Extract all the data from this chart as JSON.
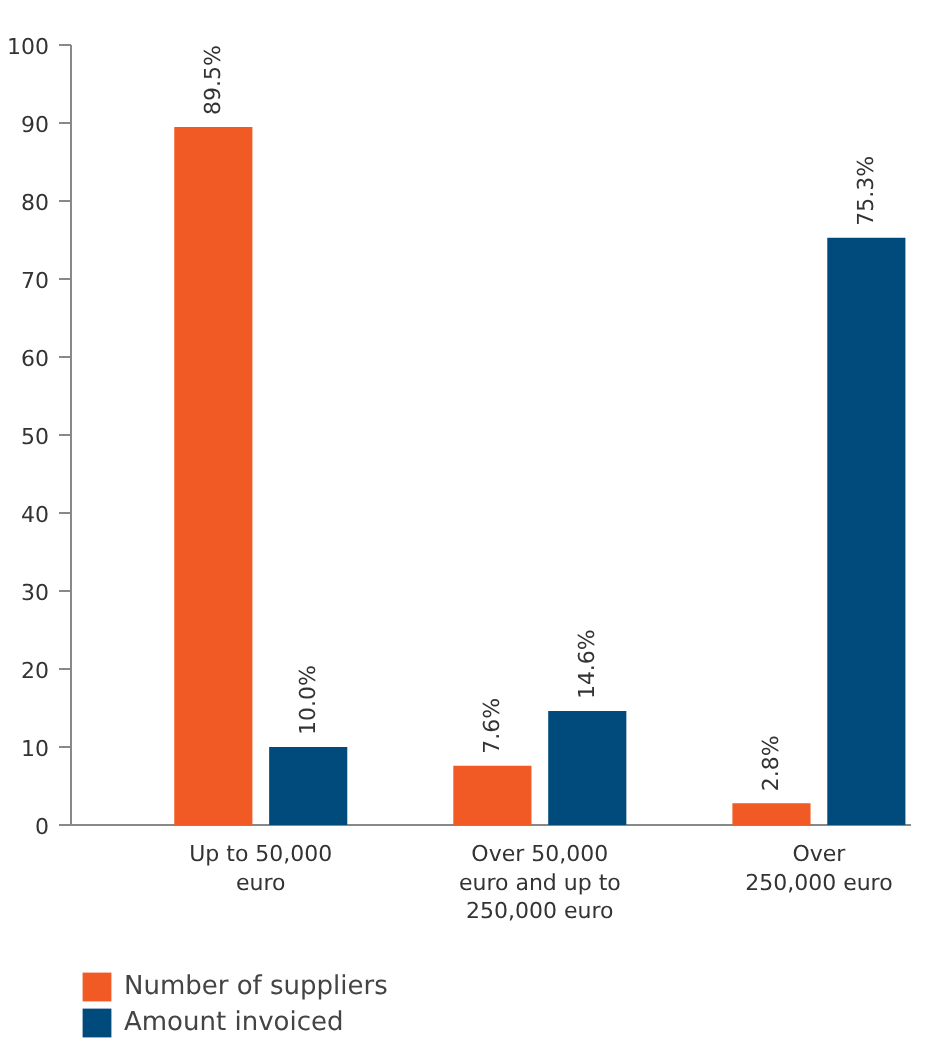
{
  "chart_data": {
    "type": "bar",
    "categories": [
      "Up to 50,000\neuro",
      "Over 50,000\neuro and up to\n250,000 euro",
      "Over\n250,000 euro"
    ],
    "series": [
      {
        "name": "Number of suppliers",
        "color": "#f15a24",
        "values": [
          89.5,
          7.6,
          2.8
        ],
        "value_labels": [
          "89.5%",
          "7.6%",
          "2.8%"
        ]
      },
      {
        "name": "Amount invoiced",
        "color": "#004b7c",
        "values": [
          10.0,
          14.6,
          75.3
        ],
        "value_labels": [
          "10.0%",
          "14.6%",
          "75.3%"
        ]
      }
    ],
    "ylim": [
      0,
      100
    ],
    "yticks": [
      0,
      10,
      20,
      30,
      40,
      50,
      60,
      70,
      80,
      90,
      100
    ],
    "grid": false,
    "legend": "bottom left"
  }
}
